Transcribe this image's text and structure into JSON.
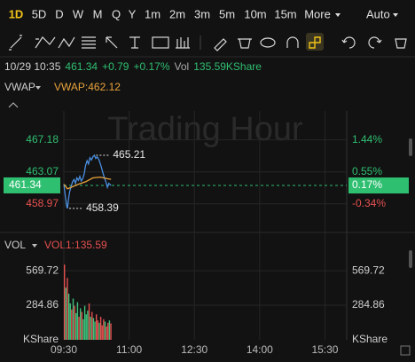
{
  "toolbar": {
    "timeframes": [
      "1D",
      "5D",
      "D",
      "W",
      "M",
      "Q",
      "Y",
      "1m",
      "2m",
      "3m",
      "5m",
      "10m",
      "15m",
      "More"
    ],
    "scale": "Auto"
  },
  "quote": {
    "time": "10/29 10:35",
    "price": "461.34",
    "change": "+0.79",
    "change_pct": "+0.17%",
    "vol_label": "Vol",
    "volume": "135.59KShare"
  },
  "chart_data": [
    {
      "type": "line",
      "indicator": "VWAP",
      "legend": "VWAP:462.12",
      "watermark": "Trading Hour",
      "xlim": [
        "09:30",
        "16:00"
      ],
      "xticks": [
        "09:30",
        "11:00",
        "12:30",
        "14:00",
        "15:30"
      ],
      "ylim": [
        455.3,
        470.9
      ],
      "yticks": [
        458.97,
        463.07,
        467.18
      ],
      "last_price": 461.34,
      "y2lim": [
        -1.14,
        2.25
      ],
      "y2ticks": [
        {
          "value": -0.34,
          "label": "-0.34%"
        },
        {
          "value": 0.55,
          "label": "0.55%"
        },
        {
          "value": 1.44,
          "label": "1.44%"
        }
      ],
      "last_pct": {
        "value": 0.17,
        "label": "0.17%"
      },
      "series": [
        {
          "color": "#4a8fe0",
          "x": [
            "09:30",
            "09:32",
            "09:34",
            "09:35",
            "09:36",
            "09:38",
            "09:40",
            "09:42",
            "09:44",
            "09:46",
            "09:48",
            "09:50",
            "09:52",
            "09:54",
            "09:56",
            "09:58",
            "10:00",
            "10:02",
            "10:04",
            "10:06",
            "10:08",
            "10:10",
            "10:12",
            "10:14",
            "10:16",
            "10:18",
            "10:20",
            "10:22",
            "10:24",
            "10:26",
            "10:28",
            "10:30",
            "10:32",
            "10:35"
          ],
          "values": [
            461.5,
            460.0,
            458.6,
            458.39,
            459.3,
            460.5,
            461.2,
            461.8,
            462.1,
            461.6,
            462.3,
            462.0,
            462.5,
            461.9,
            462.2,
            462.8,
            463.9,
            464.5,
            464.1,
            464.9,
            464.6,
            465.0,
            465.21,
            464.8,
            465.0,
            464.7,
            464.2,
            463.6,
            462.9,
            462.3,
            461.8,
            461.1,
            461.6,
            461.34
          ]
        },
        {
          "color": "#e8a33c",
          "x": [
            "09:30",
            "09:35",
            "09:40",
            "09:50",
            "10:00",
            "10:10",
            "10:20",
            "10:30",
            "10:35"
          ],
          "values": [
            461.5,
            460.9,
            461.1,
            461.5,
            461.8,
            462.3,
            462.4,
            462.2,
            462.12
          ]
        }
      ],
      "annotations": [
        {
          "x": "10:12",
          "value": 465.21
        },
        {
          "x": "09:35",
          "value": 458.39
        }
      ]
    },
    {
      "type": "bar",
      "indicator": "VOL",
      "legend": "VOL1:135.59",
      "unit": "KShare",
      "ylim": [
        0,
        680
      ],
      "yticks": [
        284.86,
        569.72
      ],
      "x": [
        "09:30",
        "09:32",
        "09:34",
        "09:36",
        "09:38",
        "09:40",
        "09:42",
        "09:44",
        "09:46",
        "09:48",
        "09:50",
        "09:52",
        "09:54",
        "09:56",
        "09:58",
        "10:00",
        "10:02",
        "10:04",
        "10:06",
        "10:08",
        "10:10",
        "10:12",
        "10:14",
        "10:16",
        "10:18",
        "10:20",
        "10:22",
        "10:24",
        "10:26",
        "10:28",
        "10:30",
        "10:32",
        "10:34"
      ],
      "values": [
        620,
        430,
        510,
        380,
        300,
        250,
        340,
        280,
        220,
        310,
        190,
        260,
        230,
        170,
        280,
        210,
        240,
        300,
        190,
        230,
        180,
        150,
        210,
        160,
        140,
        190,
        120,
        170,
        150,
        110,
        140,
        160,
        135.59
      ],
      "colors": [
        "#e65050",
        "#3ec17a",
        "#e65050",
        "#3ec17a",
        "#3ec17a",
        "#e65050",
        "#3ec17a",
        "#e65050",
        "#3ec17a",
        "#3ec17a",
        "#e65050",
        "#3ec17a",
        "#e65050",
        "#3ec17a",
        "#3ec17a",
        "#3ec17a",
        "#3ec17a",
        "#e65050",
        "#3ec17a",
        "#e65050",
        "#3ec17a",
        "#3ec17a",
        "#e65050",
        "#e65050",
        "#3ec17a",
        "#e65050",
        "#e65050",
        "#e65050",
        "#3ec17a",
        "#e65050",
        "#e65050",
        "#3ec17a",
        "#e65050"
      ]
    }
  ]
}
